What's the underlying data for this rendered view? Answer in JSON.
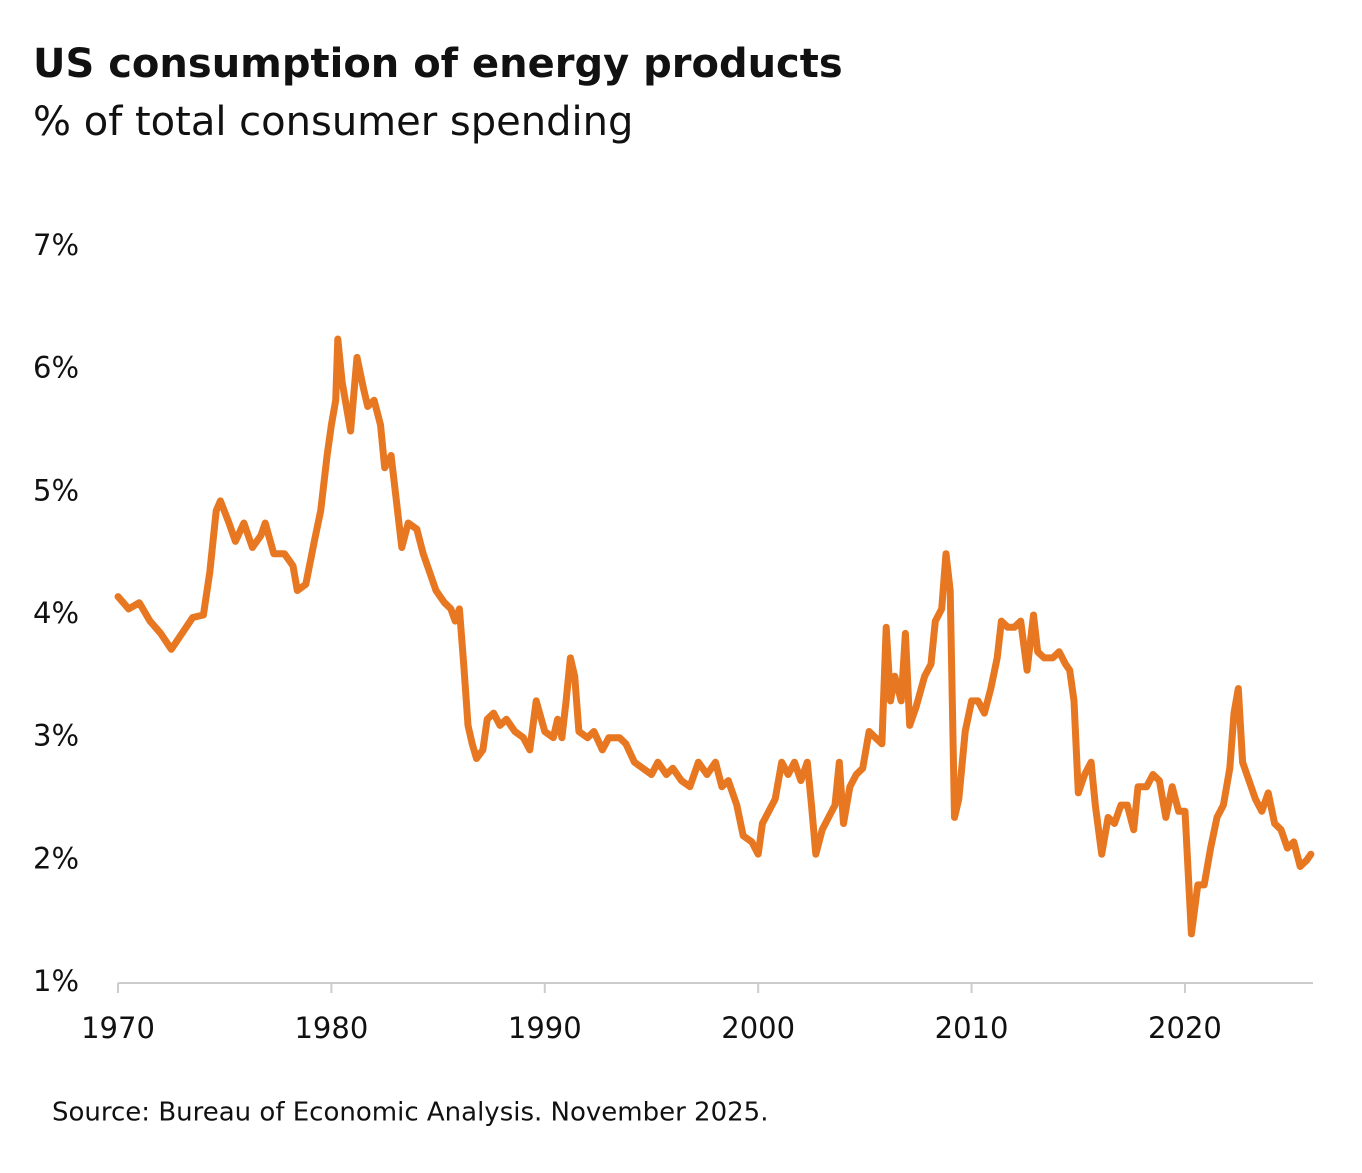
{
  "chart_data": {
    "type": "line",
    "title": "US consumption of energy products",
    "subtitle": "% of total consumer spending",
    "source": "Source: Bureau of Economic Analysis. November 2025.",
    "color": "#e87722",
    "x": [
      1970.0,
      1970.5,
      1971.0,
      1971.5,
      1972.0,
      1972.5,
      1973.0,
      1973.5,
      1974.0,
      1974.3,
      1974.6,
      1974.8,
      1975.2,
      1975.5,
      1975.9,
      1976.3,
      1976.7,
      1976.9,
      1977.3,
      1977.8,
      1978.2,
      1978.4,
      1978.8,
      1979.2,
      1979.5,
      1979.8,
      1980.0,
      1980.2,
      1980.3,
      1980.5,
      1980.9,
      1981.2,
      1981.5,
      1981.7,
      1982.0,
      1982.3,
      1982.5,
      1982.8,
      1983.0,
      1983.3,
      1983.6,
      1984.0,
      1984.3,
      1984.6,
      1984.9,
      1985.3,
      1985.6,
      1985.8,
      1986.0,
      1986.2,
      1986.4,
      1986.6,
      1986.8,
      1987.1,
      1987.3,
      1987.6,
      1987.9,
      1988.2,
      1988.6,
      1989.0,
      1989.3,
      1989.6,
      1990.0,
      1990.4,
      1990.6,
      1990.8,
      1991.0,
      1991.2,
      1991.4,
      1991.6,
      1992.0,
      1992.3,
      1992.7,
      1993.0,
      1993.5,
      1993.8,
      1994.2,
      1994.6,
      1995.0,
      1995.3,
      1995.7,
      1996.0,
      1996.4,
      1996.8,
      1997.2,
      1997.6,
      1998.0,
      1998.3,
      1998.6,
      1999.0,
      1999.3,
      1999.7,
      2000.0,
      2000.2,
      2000.5,
      2000.8,
      2001.1,
      2001.4,
      2001.7,
      2002.0,
      2002.3,
      2002.5,
      2002.7,
      2003.0,
      2003.3,
      2003.6,
      2003.8,
      2004.0,
      2004.3,
      2004.6,
      2004.9,
      2005.2,
      2005.5,
      2005.8,
      2006.0,
      2006.2,
      2006.4,
      2006.7,
      2006.9,
      2007.1,
      2007.4,
      2007.8,
      2008.1,
      2008.3,
      2008.6,
      2008.8,
      2009.0,
      2009.2,
      2009.4,
      2009.7,
      2010.0,
      2010.3,
      2010.6,
      2010.9,
      2011.2,
      2011.4,
      2011.7,
      2012.0,
      2012.3,
      2012.6,
      2012.9,
      2013.1,
      2013.4,
      2013.8,
      2014.1,
      2014.4,
      2014.6,
      2014.8,
      2015.0,
      2015.3,
      2015.6,
      2015.8,
      2016.1,
      2016.4,
      2016.7,
      2017.0,
      2017.3,
      2017.6,
      2017.8,
      2018.2,
      2018.5,
      2018.8,
      2019.1,
      2019.4,
      2019.7,
      2020.0,
      2020.3,
      2020.6,
      2020.9,
      2021.2,
      2021.5,
      2021.8,
      2022.1,
      2022.3,
      2022.5,
      2022.7,
      2023.0,
      2023.3,
      2023.6,
      2023.9,
      2024.2,
      2024.5,
      2024.8,
      2025.1,
      2025.4,
      2025.7,
      2025.9
    ],
    "values": [
      4.15,
      4.05,
      4.1,
      3.95,
      3.85,
      3.72,
      3.85,
      3.98,
      4.0,
      4.35,
      4.85,
      4.93,
      4.75,
      4.6,
      4.75,
      4.55,
      4.65,
      4.75,
      4.5,
      4.5,
      4.4,
      4.2,
      4.25,
      4.6,
      4.85,
      5.3,
      5.55,
      5.75,
      6.25,
      5.9,
      5.5,
      6.1,
      5.85,
      5.7,
      5.75,
      5.55,
      5.2,
      5.3,
      5.0,
      4.55,
      4.75,
      4.7,
      4.5,
      4.35,
      4.2,
      4.1,
      4.05,
      3.95,
      4.05,
      3.6,
      3.1,
      2.95,
      2.83,
      2.9,
      3.15,
      3.2,
      3.1,
      3.15,
      3.05,
      3.0,
      2.9,
      3.3,
      3.05,
      3.0,
      3.15,
      3.0,
      3.3,
      3.65,
      3.5,
      3.05,
      3.0,
      3.05,
      2.9,
      3.0,
      3.0,
      2.95,
      2.8,
      2.75,
      2.7,
      2.8,
      2.7,
      2.75,
      2.65,
      2.6,
      2.8,
      2.7,
      2.8,
      2.6,
      2.65,
      2.45,
      2.2,
      2.15,
      2.05,
      2.3,
      2.4,
      2.5,
      2.8,
      2.7,
      2.8,
      2.65,
      2.8,
      2.45,
      2.05,
      2.25,
      2.35,
      2.45,
      2.8,
      2.3,
      2.6,
      2.7,
      2.75,
      3.05,
      3.0,
      2.95,
      3.9,
      3.3,
      3.5,
      3.3,
      3.85,
      3.1,
      3.25,
      3.5,
      3.6,
      3.95,
      4.05,
      4.5,
      4.2,
      2.35,
      2.5,
      3.05,
      3.3,
      3.3,
      3.2,
      3.4,
      3.65,
      3.95,
      3.9,
      3.9,
      3.95,
      3.55,
      4.0,
      3.7,
      3.65,
      3.65,
      3.7,
      3.6,
      3.55,
      3.3,
      2.55,
      2.7,
      2.8,
      2.45,
      2.05,
      2.35,
      2.3,
      2.45,
      2.45,
      2.25,
      2.6,
      2.6,
      2.7,
      2.65,
      2.35,
      2.6,
      2.4,
      2.4,
      1.4,
      1.8,
      1.8,
      2.1,
      2.35,
      2.45,
      2.75,
      3.2,
      3.4,
      2.8,
      2.65,
      2.5,
      2.4,
      2.55,
      2.3,
      2.25,
      2.1,
      2.15,
      1.95,
      2.0,
      2.05
    ],
    "xlim": [
      1970,
      2026
    ],
    "xticks": [
      1970,
      1980,
      1990,
      2000,
      2010,
      2020
    ],
    "ylim": [
      1,
      7
    ],
    "yticks": [
      {
        "value": 1,
        "label": "1%"
      },
      {
        "value": 2,
        "label": "2%"
      },
      {
        "value": 3,
        "label": "3%"
      },
      {
        "value": 4,
        "label": "4%"
      },
      {
        "value": 5,
        "label": "5%"
      },
      {
        "value": 6,
        "label": "6%"
      },
      {
        "value": 7,
        "label": "7%"
      }
    ],
    "grid": false
  }
}
